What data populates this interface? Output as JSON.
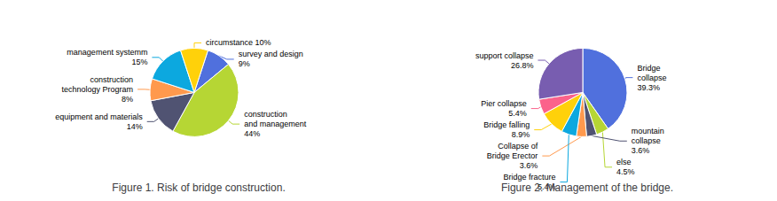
{
  "chart_data": [
    {
      "type": "pie",
      "title": "Figure 1. Risk of bridge construction.",
      "values": [
        9,
        44,
        14,
        8,
        15,
        10
      ],
      "annotations": [
        "survey and design\n9%",
        "construction\nand management\n44%",
        "equipment and materials\n14%",
        "construction\ntechnology Program\n8%",
        "management systemm\n15%",
        "circumstance 10%"
      ]
    },
    {
      "type": "pie",
      "title": "Figure 2. Management of the bridge.",
      "values": [
        39.3,
        4.5,
        3.6,
        3.6,
        5.4,
        8.9,
        5.4,
        26.8
      ],
      "annotations": [
        "Bridge\ncollapse\n39.3%",
        "else\n4.5%",
        "mountain\ncollapse\n3.6%",
        "Collapse of\nBridge Erector\n3.6%",
        "Bridge fracture\n5.4%",
        "Bridge falling\n8.9%",
        "Pier collapse\n5.4%",
        "support collapse\n26.8%"
      ]
    }
  ]
}
